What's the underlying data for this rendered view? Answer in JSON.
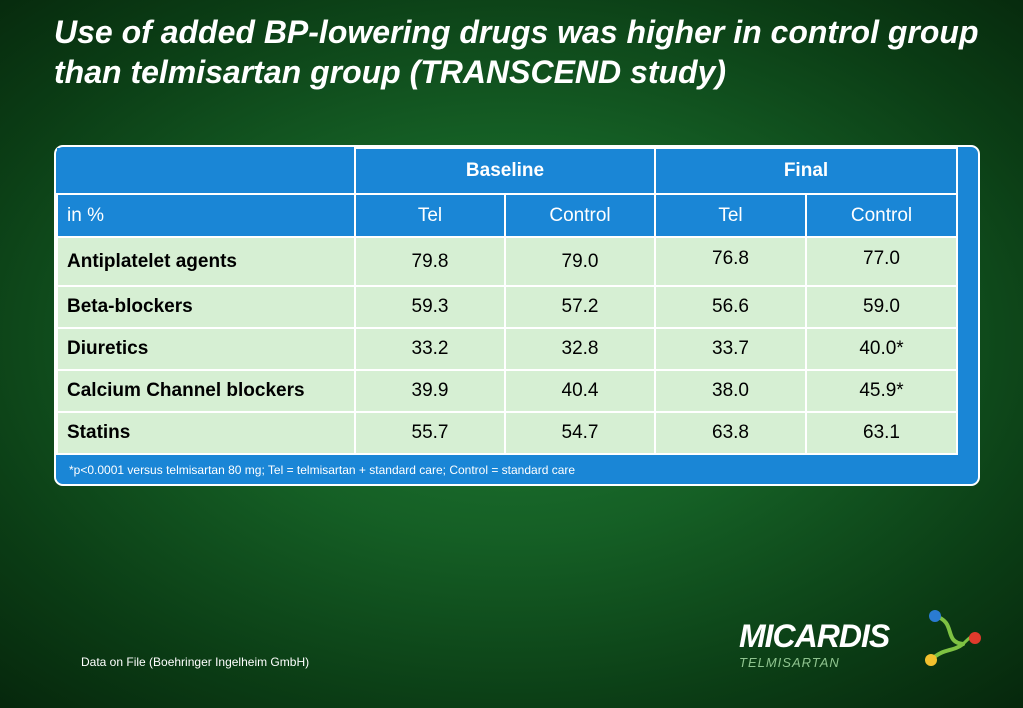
{
  "title": "Use of added BP-lowering drugs was higher in control group than telmisartan group (TRANSCEND study)",
  "table": {
    "group_headers": [
      "Baseline",
      "Final"
    ],
    "corner_label": "in %",
    "sub_headers": [
      "Tel",
      "Control",
      "Tel",
      "Control"
    ],
    "rows": [
      {
        "label": "Antiplatelet agents",
        "values": [
          "79.8",
          "79.0",
          "76.8",
          "77.0"
        ]
      },
      {
        "label": "Beta-blockers",
        "values": [
          "59.3",
          "57.2",
          "56.6",
          "59.0"
        ]
      },
      {
        "label": "Diuretics",
        "values": [
          "33.2",
          "32.8",
          "33.7",
          "40.0*"
        ]
      },
      {
        "label": "Calcium Channel blockers",
        "values": [
          "39.9",
          "40.4",
          "38.0",
          "45.9*"
        ]
      },
      {
        "label": "Statins",
        "values": [
          "55.7",
          "54.7",
          "63.8",
          "63.1"
        ]
      }
    ]
  },
  "footnote": "*p<0.0001 versus telmisartan 80 mg; Tel = telmisartan + standard care; Control = standard care",
  "source": "Data on File (Boehringer Ingelheim GmbH)",
  "logo": {
    "name": "MICARDIS",
    "subtitle": "TELMISARTAN",
    "colors": {
      "green": "#7ec242",
      "blue": "#2a7bd1",
      "red": "#e03a2c",
      "yellow": "#f2c12e"
    }
  }
}
